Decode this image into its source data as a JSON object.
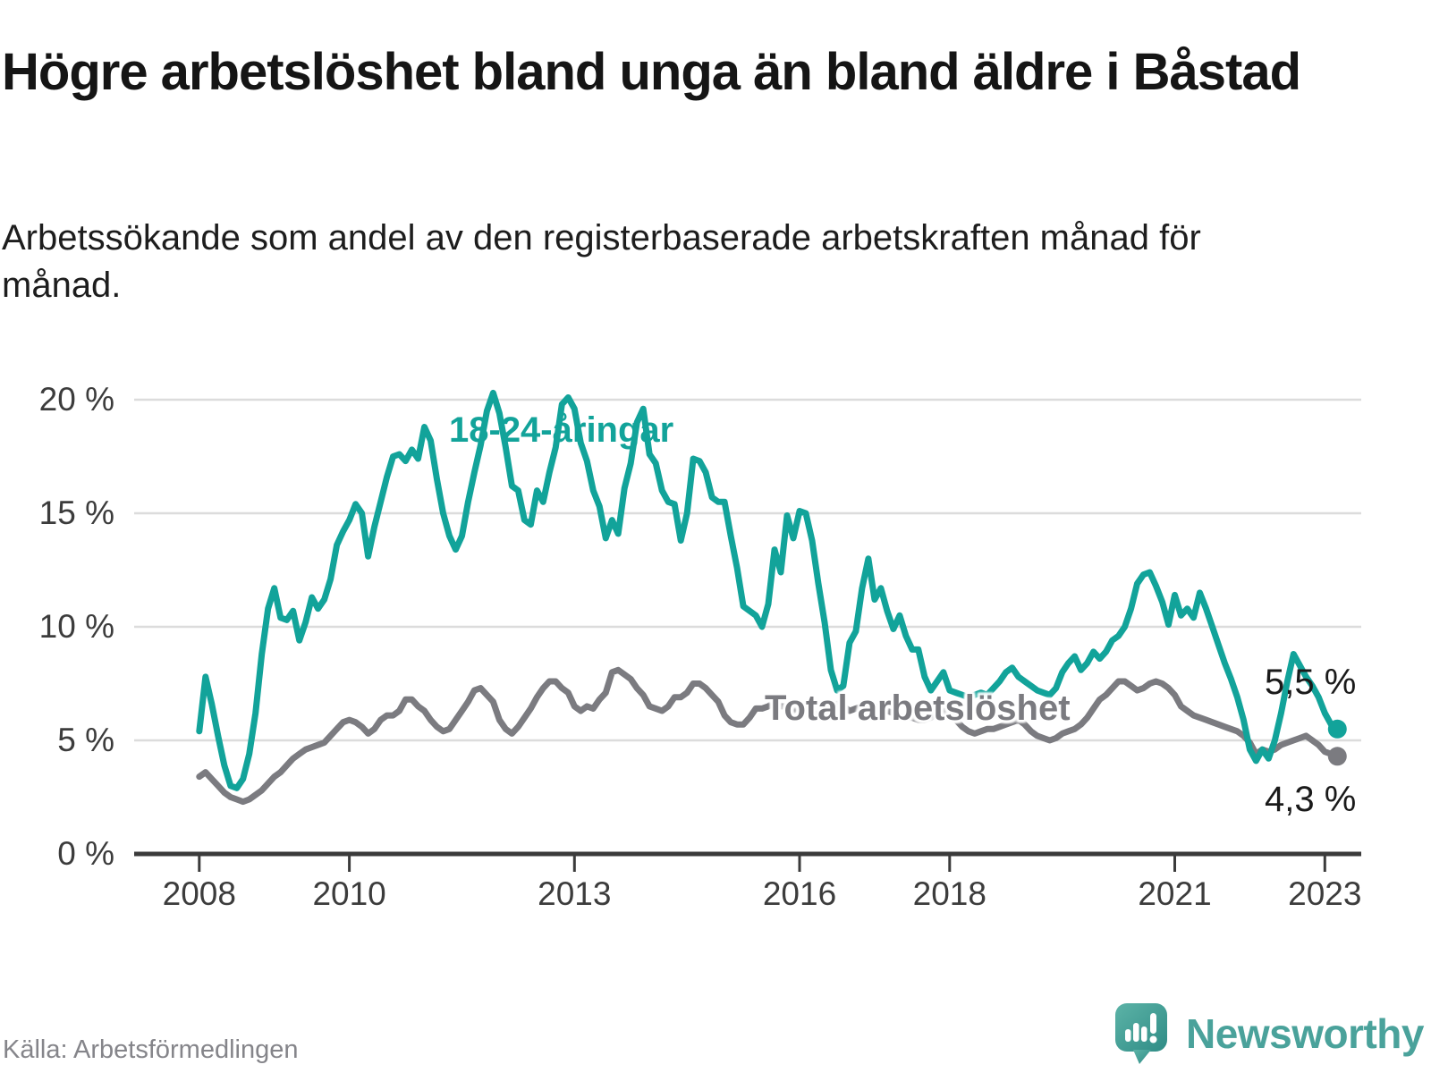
{
  "title": "Högre arbetslöshet bland unga än bland äldre i Båstad",
  "subtitle": "Arbetssökande som andel av den registerbaserade arbetskraften månad för månad.",
  "source": "Källa: Arbetsförmedlingen",
  "brand": {
    "name": "Newsworthy",
    "icon": "speech-bubble-bar-chart-icon",
    "color": "#4aa29b"
  },
  "colors": {
    "youth_line": "#12a39a",
    "total_line": "#7b7b80",
    "gridline": "#dcdcdc",
    "axis": "#3b3b3b",
    "tick_text": "#3c3c3c",
    "annotation_text": "#1a1a1a"
  },
  "chart_data": {
    "type": "line",
    "title": "Högre arbetslöshet bland unga än bland äldre i Båstad",
    "xlabel": "",
    "ylabel": "",
    "unit": "%",
    "frequency": "monthly",
    "x_start": "2008-01",
    "x_end": "2023-03",
    "grid": "horizontal",
    "legend": "inline-labels",
    "y_axis": {
      "min": 0,
      "max": 20,
      "tick_values": [
        0,
        5,
        10,
        15,
        20
      ],
      "tick_labels": [
        "0 %",
        "5 %",
        "10 %",
        "15 %",
        "20 %"
      ]
    },
    "x_axis": {
      "tick_years": [
        2008,
        2010,
        2013,
        2016,
        2018,
        2021,
        2023
      ],
      "tick_labels": [
        "2008",
        "2010",
        "2013",
        "2016",
        "2018",
        "2021",
        "2023"
      ]
    },
    "series": [
      {
        "name": "18-24-åringar",
        "color": "#12a39a",
        "end_label": "5,5 %",
        "end_value": 5.5,
        "values": [
          5.4,
          7.8,
          6.6,
          5.2,
          3.9,
          3.0,
          2.9,
          3.3,
          4.4,
          6.2,
          8.8,
          10.8,
          11.7,
          10.4,
          10.3,
          10.7,
          9.4,
          10.2,
          11.3,
          10.8,
          11.2,
          12.1,
          13.6,
          14.2,
          14.7,
          15.4,
          15.0,
          13.1,
          14.4,
          15.5,
          16.6,
          17.5,
          17.6,
          17.3,
          17.8,
          17.4,
          18.8,
          18.2,
          16.5,
          15.0,
          14.0,
          13.4,
          14.0,
          15.5,
          16.8,
          18.0,
          19.5,
          20.3,
          19.4,
          17.9,
          16.2,
          16.0,
          14.7,
          14.5,
          16.0,
          15.5,
          16.8,
          17.9,
          19.8,
          20.1,
          19.6,
          18.1,
          17.3,
          16.0,
          15.3,
          13.9,
          14.7,
          14.1,
          16.1,
          17.2,
          19.0,
          19.6,
          17.6,
          17.2,
          16.0,
          15.5,
          15.4,
          13.8,
          15.0,
          17.4,
          17.3,
          16.8,
          15.7,
          15.5,
          15.5,
          14.0,
          12.6,
          10.9,
          10.7,
          10.5,
          10.0,
          11.0,
          13.4,
          12.4,
          14.9,
          13.9,
          15.1,
          15.0,
          13.8,
          11.9,
          10.2,
          8.1,
          7.2,
          7.4,
          9.3,
          9.8,
          11.7,
          13.0,
          11.2,
          11.7,
          10.7,
          9.9,
          10.5,
          9.6,
          9.0,
          9.0,
          7.8,
          7.2,
          7.6,
          8.0,
          7.2,
          7.1,
          7.0,
          6.9,
          7.0,
          7.1,
          7.0,
          7.3,
          7.6,
          8.0,
          8.2,
          7.8,
          7.6,
          7.4,
          7.2,
          7.1,
          7.0,
          7.3,
          8.0,
          8.4,
          8.7,
          8.1,
          8.4,
          8.9,
          8.6,
          8.9,
          9.4,
          9.6,
          10.0,
          10.8,
          11.9,
          12.3,
          12.4,
          11.8,
          11.1,
          10.1,
          11.4,
          10.5,
          10.8,
          10.4,
          11.5,
          10.8,
          10.0,
          9.2,
          8.4,
          7.7,
          6.9,
          5.9,
          4.6,
          4.1,
          4.6,
          4.2,
          5.0,
          6.2,
          7.6,
          8.8,
          8.3,
          7.8,
          7.4,
          6.9,
          6.2,
          5.7,
          5.5
        ]
      },
      {
        "name": "Total arbetslöshet",
        "color": "#7b7b80",
        "end_label": "4,3 %",
        "end_value": 4.3,
        "values": [
          3.4,
          3.6,
          3.3,
          3.0,
          2.7,
          2.5,
          2.4,
          2.3,
          2.4,
          2.6,
          2.8,
          3.1,
          3.4,
          3.6,
          3.9,
          4.2,
          4.4,
          4.6,
          4.7,
          4.8,
          4.9,
          5.2,
          5.5,
          5.8,
          5.9,
          5.8,
          5.6,
          5.3,
          5.5,
          5.9,
          6.1,
          6.1,
          6.3,
          6.8,
          6.8,
          6.5,
          6.3,
          5.9,
          5.6,
          5.4,
          5.5,
          5.9,
          6.3,
          6.7,
          7.2,
          7.3,
          7.0,
          6.7,
          5.9,
          5.5,
          5.3,
          5.6,
          6.0,
          6.4,
          6.9,
          7.3,
          7.6,
          7.6,
          7.3,
          7.1,
          6.5,
          6.3,
          6.5,
          6.4,
          6.8,
          7.1,
          8.0,
          8.1,
          7.9,
          7.7,
          7.3,
          7.0,
          6.5,
          6.4,
          6.3,
          6.5,
          6.9,
          6.9,
          7.1,
          7.5,
          7.5,
          7.3,
          7.0,
          6.7,
          6.1,
          5.8,
          5.7,
          5.7,
          6.0,
          6.4,
          6.4,
          6.5,
          6.7,
          6.5,
          6.5,
          6.3,
          6.6,
          6.5,
          6.3,
          6.0,
          6.2,
          6.4,
          6.6,
          6.5,
          6.3,
          6.4,
          6.5,
          6.4,
          6.5,
          6.4,
          6.3,
          6.2,
          6.1,
          6.0,
          6.0,
          5.9,
          5.9,
          6.0,
          6.2,
          6.3,
          6.2,
          5.9,
          5.6,
          5.4,
          5.3,
          5.4,
          5.5,
          5.5,
          5.6,
          5.7,
          5.8,
          5.9,
          5.7,
          5.4,
          5.2,
          5.1,
          5.0,
          5.1,
          5.3,
          5.4,
          5.5,
          5.7,
          6.0,
          6.4,
          6.8,
          7.0,
          7.3,
          7.6,
          7.6,
          7.4,
          7.2,
          7.3,
          7.5,
          7.6,
          7.5,
          7.3,
          7.0,
          6.5,
          6.3,
          6.1,
          6.0,
          5.9,
          5.8,
          5.7,
          5.6,
          5.5,
          5.4,
          5.2,
          4.9,
          4.4,
          4.6,
          4.5,
          4.6,
          4.8,
          4.9,
          5.0,
          5.1,
          5.2,
          5.0,
          4.8,
          4.5,
          4.4,
          4.3
        ]
      }
    ]
  }
}
